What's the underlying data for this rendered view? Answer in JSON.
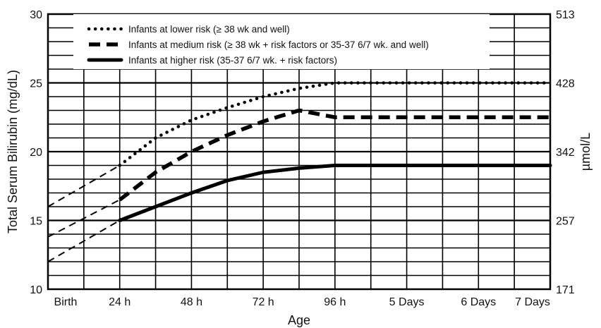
{
  "chart_data": {
    "type": "line",
    "xlabel": "Age",
    "ylabel": "Total Serum Bilirubin (mg/dL)",
    "y2label": "µmol/L",
    "ylim": [
      10,
      30
    ],
    "xlim": [
      0,
      168
    ],
    "x_tick_labels": [
      "Birth",
      "24 h",
      "48 h",
      "72 h",
      "96 h",
      "5 Days",
      "6 Days",
      "7 Days"
    ],
    "x_tick_hours": [
      0,
      24,
      48,
      72,
      96,
      120,
      144,
      168
    ],
    "y_ticks": [
      10,
      15,
      20,
      25,
      30
    ],
    "y2_tick_labels": [
      "171",
      "257",
      "342",
      "428",
      "513"
    ],
    "grid": true,
    "legend_position": "top-left",
    "series": [
      {
        "name": "Infants at lower risk (≥ 38 wk and well)",
        "style": "dotted",
        "extrapolated_x": [
          0,
          24
        ],
        "extrapolated_y": [
          16,
          19
        ],
        "x": [
          24,
          36,
          48,
          60,
          72,
          84,
          96,
          120,
          144,
          168
        ],
        "y": [
          19,
          21,
          22.3,
          23.2,
          24,
          24.6,
          25,
          25,
          25,
          25
        ]
      },
      {
        "name": "Infants at medium risk (≥ 38 wk + risk factors or 35-37 6/7 wk. and well)",
        "style": "dashed",
        "extrapolated_x": [
          0,
          24
        ],
        "extrapolated_y": [
          13.8,
          16.5
        ],
        "x": [
          24,
          36,
          48,
          60,
          72,
          84,
          96,
          120,
          144,
          168
        ],
        "y": [
          16.5,
          18.5,
          20,
          21.2,
          22.2,
          23,
          22.5,
          22.5,
          22.5,
          22.5
        ]
      },
      {
        "name": "Infants at higher risk (35-37 6/7 wk. + risk factors)",
        "style": "solid",
        "extrapolated_x": [
          0,
          24
        ],
        "extrapolated_y": [
          12,
          15
        ],
        "x": [
          24,
          36,
          48,
          60,
          72,
          84,
          96,
          120,
          144,
          168
        ],
        "y": [
          15,
          16,
          17,
          17.9,
          18.5,
          18.8,
          19,
          19,
          19,
          19
        ]
      }
    ]
  }
}
